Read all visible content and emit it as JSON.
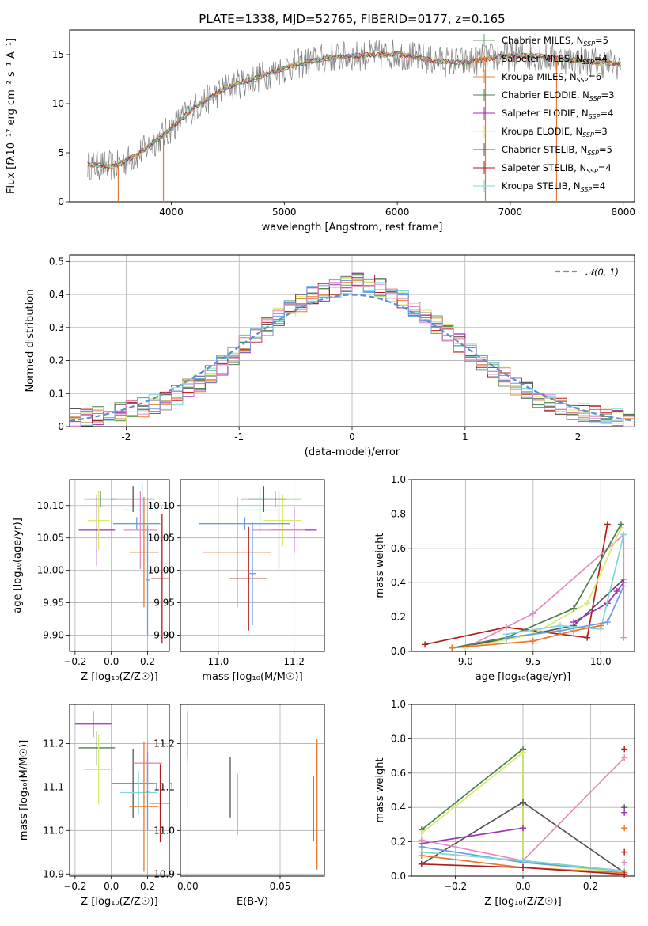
{
  "figure": {
    "title": "PLATE=1338, MJD=52765, FIBERID=0177, z=0.165"
  },
  "colors": {
    "c1": "#6a9f6a",
    "c2": "#e87a2e",
    "c3": "#e08a3c",
    "c4": "#4e7d4e",
    "c5": "#a02fb5",
    "c6": "#d8ec6c",
    "c7": "#555555",
    "c8": "#b01c1c",
    "c9": "#7fd7d9",
    "obs": "#808080",
    "c10": "#6b9ce0",
    "c11": "#e48bbf",
    "c12": "#c9f07d",
    "normal": "#5b8fd4"
  },
  "chart_data": [
    {
      "type": "line",
      "id": "spectrum",
      "title": "PLATE=1338, MJD=52765, FIBERID=0177, z=0.165",
      "xlabel": "wavelength [Angstrom, rest frame]",
      "ylabel": "Flux [fλ10⁻¹⁷ erg cm⁻² s⁻¹ A⁻¹]",
      "xlim": [
        3100,
        8100
      ],
      "ylim": [
        0,
        17.5
      ],
      "xticks": [
        4000,
        5000,
        6000,
        7000,
        8000
      ],
      "yticks": [
        0,
        5,
        10,
        15
      ],
      "x_range": [
        3260,
        7980
      ],
      "continuum": {
        "x": [
          3260,
          3500,
          3700,
          3950,
          4200,
          4500,
          4800,
          5100,
          5400,
          5700,
          6000,
          6300,
          6600,
          6900,
          7200,
          7500,
          7800,
          7980
        ],
        "y": [
          3.8,
          3.6,
          4.8,
          7.0,
          9.6,
          11.7,
          12.8,
          14.0,
          14.7,
          14.9,
          15.1,
          14.4,
          14.2,
          14.8,
          14.9,
          14.5,
          14.2,
          14.0
        ]
      },
      "legend": [
        {
          "label": "Chabrier MILES, N",
          "sub": "SSP",
          "suffix": "=5",
          "color_key": "c1"
        },
        {
          "label": "Salpeter MILES, N",
          "sub": "SSP",
          "suffix": "=4",
          "color_key": "c2"
        },
        {
          "label": "Kroupa MILES, N",
          "sub": "SSP",
          "suffix": "=6",
          "color_key": "c3"
        },
        {
          "label": "Chabrier ELODIE, N",
          "sub": "SSP",
          "suffix": "=3",
          "color_key": "c4"
        },
        {
          "label": "Salpeter ELODIE, N",
          "sub": "SSP",
          "suffix": "=4",
          "color_key": "c5"
        },
        {
          "label": "Kroupa ELODIE, N",
          "sub": "SSP",
          "suffix": "=3",
          "color_key": "c6"
        },
        {
          "label": "Chabrier STELIB, N",
          "sub": "SSP",
          "suffix": "=5",
          "color_key": "c7"
        },
        {
          "label": "Salpeter STELIB, N",
          "sub": "SSP",
          "suffix": "=4",
          "color_key": "c8"
        },
        {
          "label": "Kroupa STELIB, N",
          "sub": "SSP",
          "suffix": "=4",
          "color_key": "c9"
        }
      ],
      "legend_placement": "right"
    },
    {
      "type": "line",
      "id": "residuals",
      "xlabel": "(data-model)/error",
      "ylabel": "Normed distribution",
      "xlim": [
        -2.5,
        2.5
      ],
      "ylim": [
        0,
        0.52
      ],
      "xticks": [
        -2,
        -1,
        0,
        1,
        2
      ],
      "yticks": [
        0.0,
        0.1,
        0.2,
        0.3,
        0.4,
        0.5
      ],
      "grid": true,
      "reference": {
        "label": "𝒩(0, 1)",
        "color_key": "normal"
      },
      "histogram": {
        "bin_start": -2.5,
        "bin_width": 0.1,
        "density": [
          0.025,
          0.03,
          0.035,
          0.04,
          0.045,
          0.052,
          0.058,
          0.068,
          0.08,
          0.095,
          0.115,
          0.135,
          0.16,
          0.185,
          0.215,
          0.25,
          0.275,
          0.3,
          0.33,
          0.355,
          0.375,
          0.395,
          0.41,
          0.42,
          0.43,
          0.44,
          0.43,
          0.42,
          0.405,
          0.385,
          0.36,
          0.335,
          0.31,
          0.28,
          0.255,
          0.225,
          0.2,
          0.175,
          0.15,
          0.125,
          0.105,
          0.088,
          0.072,
          0.06,
          0.05,
          0.042,
          0.035,
          0.03,
          0.025,
          0.02
        ]
      },
      "legend_placement": "upper right"
    },
    {
      "type": "scatter",
      "id": "age-vs-Z",
      "xlabel": "Z [log₁₀(Z/Z☉)]",
      "ylabel": "age  [log₁₀(age/yr)]",
      "xlim": [
        -0.23,
        0.32
      ],
      "ylim": [
        9.875,
        10.14
      ],
      "xticks": [
        -0.2,
        0.0,
        0.2
      ],
      "xticklabels": [
        "−0.2",
        "0.0",
        "0.2"
      ],
      "yticks": [
        9.9,
        9.95,
        10.0,
        10.05,
        10.1
      ],
      "yticklabels": [
        "9.90",
        "9.95",
        "10.00",
        "10.05",
        "10.10"
      ],
      "grid": true,
      "points": [
        {
          "x": -0.08,
          "y": 10.062,
          "xerr": 0.1,
          "yerr": 0.055,
          "color_key": "c5"
        },
        {
          "x": -0.06,
          "y": 10.11,
          "xerr": 0.09,
          "yerr": 0.012,
          "color_key": "c4"
        },
        {
          "x": -0.07,
          "y": 10.077,
          "xerr": 0.06,
          "yerr": 0.045,
          "color_key": "c6"
        },
        {
          "x": 0.12,
          "y": 10.11,
          "xerr": 0.12,
          "yerr": 0.02,
          "color_key": "c7"
        },
        {
          "x": 0.14,
          "y": 10.072,
          "xerr": 0.13,
          "yerr": 0.01,
          "color_key": "c10"
        },
        {
          "x": 0.16,
          "y": 10.062,
          "xerr": 0.09,
          "yerr": 0.06,
          "color_key": "c11"
        },
        {
          "x": 0.17,
          "y": 10.093,
          "xerr": 0.1,
          "yerr": 0.04,
          "color_key": "c9"
        },
        {
          "x": 0.18,
          "y": 10.028,
          "xerr": 0.08,
          "yerr": 0.085,
          "color_key": "c2"
        },
        {
          "x": 0.2,
          "y": 9.985,
          "xerr": 0.01,
          "yerr": 0.085,
          "color_key": "c10"
        },
        {
          "x": 0.28,
          "y": 9.987,
          "xerr": 0.06,
          "yerr": 0.1,
          "color_key": "c8"
        }
      ]
    },
    {
      "type": "scatter",
      "id": "age-vs-mass",
      "xlabel": "mass [log₁₀(M/M☉)]",
      "xlim": [
        10.9,
        11.28
      ],
      "ylim": [
        9.875,
        10.14
      ],
      "xticks": [
        11.0,
        11.2
      ],
      "xticklabels": [
        "11.0",
        "11.2"
      ],
      "yticks": [
        9.9,
        9.95,
        10.0,
        10.05,
        10.1
      ],
      "yticklabels": [
        "9.90",
        "9.95",
        "10.00",
        "10.05",
        "10.10"
      ],
      "grid": true,
      "points": [
        {
          "x": 11.15,
          "y": 10.11,
          "xerr": 0.07,
          "yerr": 0.012,
          "color_key": "c4"
        },
        {
          "x": 11.2,
          "y": 10.062,
          "xerr": 0.06,
          "yerr": 0.035,
          "color_key": "c5"
        },
        {
          "x": 11.17,
          "y": 10.077,
          "xerr": 0.05,
          "yerr": 0.04,
          "color_key": "c6"
        },
        {
          "x": 11.07,
          "y": 10.072,
          "xerr": 0.12,
          "yerr": 0.01,
          "color_key": "c10"
        },
        {
          "x": 11.11,
          "y": 10.093,
          "xerr": 0.05,
          "yerr": 0.035,
          "color_key": "c9"
        },
        {
          "x": 11.05,
          "y": 10.028,
          "xerr": 0.09,
          "yerr": 0.085,
          "color_key": "c2"
        },
        {
          "x": 11.12,
          "y": 10.11,
          "xerr": 0.06,
          "yerr": 0.02,
          "color_key": "c7"
        },
        {
          "x": 11.16,
          "y": 10.062,
          "xerr": 0.07,
          "yerr": 0.06,
          "color_key": "c11"
        },
        {
          "x": 11.08,
          "y": 9.987,
          "xerr": 0.05,
          "yerr": 0.08,
          "color_key": "c8"
        },
        {
          "x": 11.09,
          "y": 9.995,
          "xerr": 0.01,
          "yerr": 0.08,
          "color_key": "c10"
        }
      ]
    },
    {
      "type": "line",
      "id": "mass-weight-vs-age",
      "xlabel": "age  [log₁₀(age/yr)]",
      "ylabel": "mass weight",
      "xlim": [
        8.6,
        10.25
      ],
      "ylim": [
        0,
        1.0
      ],
      "xticks": [
        9.0,
        9.5,
        10.0
      ],
      "xticklabels": [
        "9.0",
        "9.5",
        "10.0"
      ],
      "yticks": [
        0.0,
        0.2,
        0.4,
        0.6,
        0.8,
        1.0
      ],
      "yticklabels": [
        "0.0",
        "0.2",
        "0.4",
        "0.6",
        "0.8",
        "1.0"
      ],
      "grid": true,
      "series": [
        {
          "color_key": "c8",
          "x": [
            8.7,
            9.3,
            9.9,
            10.05
          ],
          "y": [
            0.04,
            0.14,
            0.08,
            0.74
          ]
        },
        {
          "color_key": "c7",
          "x": [
            8.9,
            9.3,
            9.8,
            10.17
          ],
          "y": [
            0.02,
            0.07,
            0.15,
            0.42
          ]
        },
        {
          "color_key": "c11",
          "x": [
            9.0,
            9.5,
            10.17,
            10.17
          ],
          "y": [
            0.02,
            0.22,
            0.68,
            0.08
          ]
        },
        {
          "color_key": "c6",
          "x": [
            9.0,
            9.5,
            9.9,
            10.15
          ],
          "y": [
            0.02,
            0.1,
            0.28,
            0.72
          ]
        },
        {
          "color_key": "c4",
          "x": [
            8.9,
            9.3,
            9.8,
            10.15
          ],
          "y": [
            0.02,
            0.08,
            0.25,
            0.74
          ]
        },
        {
          "color_key": "c5",
          "x": [
            9.8,
            10.05,
            10.12,
            10.17
          ],
          "y": [
            0.17,
            0.28,
            0.35,
            0.4
          ]
        },
        {
          "color_key": "c9",
          "x": [
            9.3,
            9.7,
            10.0,
            10.17
          ],
          "y": [
            0.1,
            0.15,
            0.13,
            0.68
          ]
        },
        {
          "color_key": "c10",
          "x": [
            9.3,
            9.7,
            10.05,
            10.17
          ],
          "y": [
            0.08,
            0.12,
            0.17,
            0.38
          ]
        },
        {
          "color_key": "c2",
          "x": [
            8.9,
            9.5,
            9.8,
            10.0
          ],
          "y": [
            0.02,
            0.06,
            0.12,
            0.15
          ]
        }
      ]
    },
    {
      "type": "scatter",
      "id": "mass-vs-Z",
      "xlabel": "Z [log₁₀(Z/Z☉)]",
      "ylabel": "mass [log₁₀(M/M☉)]",
      "xlim": [
        -0.23,
        0.32
      ],
      "ylim": [
        10.895,
        11.29
      ],
      "xticks": [
        -0.2,
        0.0,
        0.2
      ],
      "xticklabels": [
        "−0.2",
        "0.0",
        "0.2"
      ],
      "yticks": [
        10.9,
        11.0,
        11.1,
        11.2
      ],
      "yticklabels": [
        "10.9",
        "11.0",
        "11.1",
        "11.2"
      ],
      "grid": true,
      "points": [
        {
          "x": -0.1,
          "y": 11.245,
          "xerr": 0.1,
          "yerr": 0.03,
          "color_key": "c5"
        },
        {
          "x": -0.08,
          "y": 11.19,
          "xerr": 0.1,
          "yerr": 0.04,
          "color_key": "c4"
        },
        {
          "x": -0.07,
          "y": 11.14,
          "xerr": 0.08,
          "yerr": 0.08,
          "color_key": "c6"
        },
        {
          "x": 0.12,
          "y": 11.108,
          "xerr": 0.12,
          "yerr": 0.08,
          "color_key": "c7"
        },
        {
          "x": 0.15,
          "y": 11.087,
          "xerr": 0.1,
          "yerr": 0.05,
          "color_key": "c9"
        },
        {
          "x": 0.2,
          "y": 11.155,
          "xerr": 0.08,
          "yerr": 0.05,
          "color_key": "c11"
        },
        {
          "x": 0.18,
          "y": 11.055,
          "xerr": 0.08,
          "yerr": 0.15,
          "color_key": "c2"
        },
        {
          "x": 0.27,
          "y": 11.063,
          "xerr": 0.06,
          "yerr": 0.09,
          "color_key": "c8"
        },
        {
          "x": 0.2,
          "y": 11.09,
          "xerr": 0.01,
          "yerr": 0.09,
          "color_key": "c10"
        }
      ]
    },
    {
      "type": "scatter",
      "id": "mass-vs-ebv",
      "xlabel": "E(B-V)",
      "xlim": [
        -0.004,
        0.074
      ],
      "ylim": [
        10.895,
        11.29
      ],
      "xticks": [
        0.0,
        0.05
      ],
      "xticklabels": [
        "0.00",
        "0.05"
      ],
      "yticks": [
        10.9,
        11.0,
        11.1,
        11.2
      ],
      "yticklabels": [
        "10.9",
        "11.0",
        "11.1",
        "11.2"
      ],
      "grid": true,
      "points": [
        {
          "x": 0.0,
          "y": 11.215,
          "xerr": 0,
          "yerr": 0.06,
          "color_key": "c5"
        },
        {
          "x": 0.0,
          "y": 11.11,
          "xerr": 0,
          "yerr": 0.06,
          "color_key": "c6"
        },
        {
          "x": 0.023,
          "y": 11.1,
          "xerr": 0,
          "yerr": 0.07,
          "color_key": "c7"
        },
        {
          "x": 0.027,
          "y": 11.06,
          "xerr": 0,
          "yerr": 0.07,
          "color_key": "c9"
        },
        {
          "x": 0.068,
          "y": 11.05,
          "xerr": 0,
          "yerr": 0.075,
          "color_key": "c8"
        },
        {
          "x": 0.07,
          "y": 11.06,
          "xerr": 0,
          "yerr": 0.15,
          "color_key": "c2"
        }
      ]
    },
    {
      "type": "line",
      "id": "mass-weight-vs-Z",
      "xlabel": "Z [log₁₀(Z/Z☉)]",
      "ylabel": "mass weight",
      "xlim": [
        -0.33,
        0.33
      ],
      "ylim": [
        0,
        1.0
      ],
      "xticks": [
        -0.2,
        0.0,
        0.2
      ],
      "xticklabels": [
        "−0.2",
        "0.0",
        "0.2"
      ],
      "yticks": [
        0.0,
        0.2,
        0.4,
        0.6,
        0.8,
        1.0
      ],
      "yticklabels": [
        "0.0",
        "0.2",
        "0.4",
        "0.6",
        "0.8",
        "1.0"
      ],
      "grid": true,
      "series": [
        {
          "color_key": "c4",
          "x": [
            -0.3,
            0.0,
            0.0,
            0.3
          ],
          "y": [
            0.27,
            0.74,
            0.09,
            0.03
          ]
        },
        {
          "color_key": "c6",
          "x": [
            -0.3,
            0.0,
            0.0,
            0.3
          ],
          "y": [
            0.25,
            0.72,
            0.08,
            0.02
          ]
        },
        {
          "color_key": "c7",
          "x": [
            -0.3,
            0.0,
            0.3
          ],
          "y": [
            0.07,
            0.43,
            0.02
          ]
        },
        {
          "color_key": "c5",
          "x": [
            -0.3,
            0.0
          ],
          "y": [
            0.19,
            0.28
          ]
        },
        {
          "color_key": "c11",
          "x": [
            -0.3,
            0.0,
            0.3
          ],
          "y": [
            0.21,
            0.09,
            0.69
          ]
        },
        {
          "color_key": "c10",
          "x": [
            -0.3,
            0.0,
            0.3
          ],
          "y": [
            0.17,
            0.08,
            0.03
          ]
        },
        {
          "color_key": "c9",
          "x": [
            -0.3,
            0.0,
            0.3
          ],
          "y": [
            0.14,
            0.09,
            0.03
          ]
        },
        {
          "color_key": "c2",
          "x": [
            -0.3,
            0.0,
            0.3
          ],
          "y": [
            0.12,
            0.05,
            0.02
          ]
        },
        {
          "color_key": "c8",
          "x": [
            -0.3,
            0.0,
            0.3
          ],
          "y": [
            0.07,
            0.05,
            0.01
          ]
        }
      ],
      "markers_at_edges": [
        {
          "x": 0.3,
          "y": 0.74,
          "color_key": "c8"
        },
        {
          "x": 0.3,
          "y": 0.4,
          "color_key": "c7"
        },
        {
          "x": 0.3,
          "y": 0.37,
          "color_key": "c5"
        },
        {
          "x": 0.3,
          "y": 0.28,
          "color_key": "c2"
        },
        {
          "x": 0.3,
          "y": 0.14,
          "color_key": "c8"
        },
        {
          "x": 0.3,
          "y": 0.08,
          "color_key": "c11"
        }
      ]
    }
  ]
}
